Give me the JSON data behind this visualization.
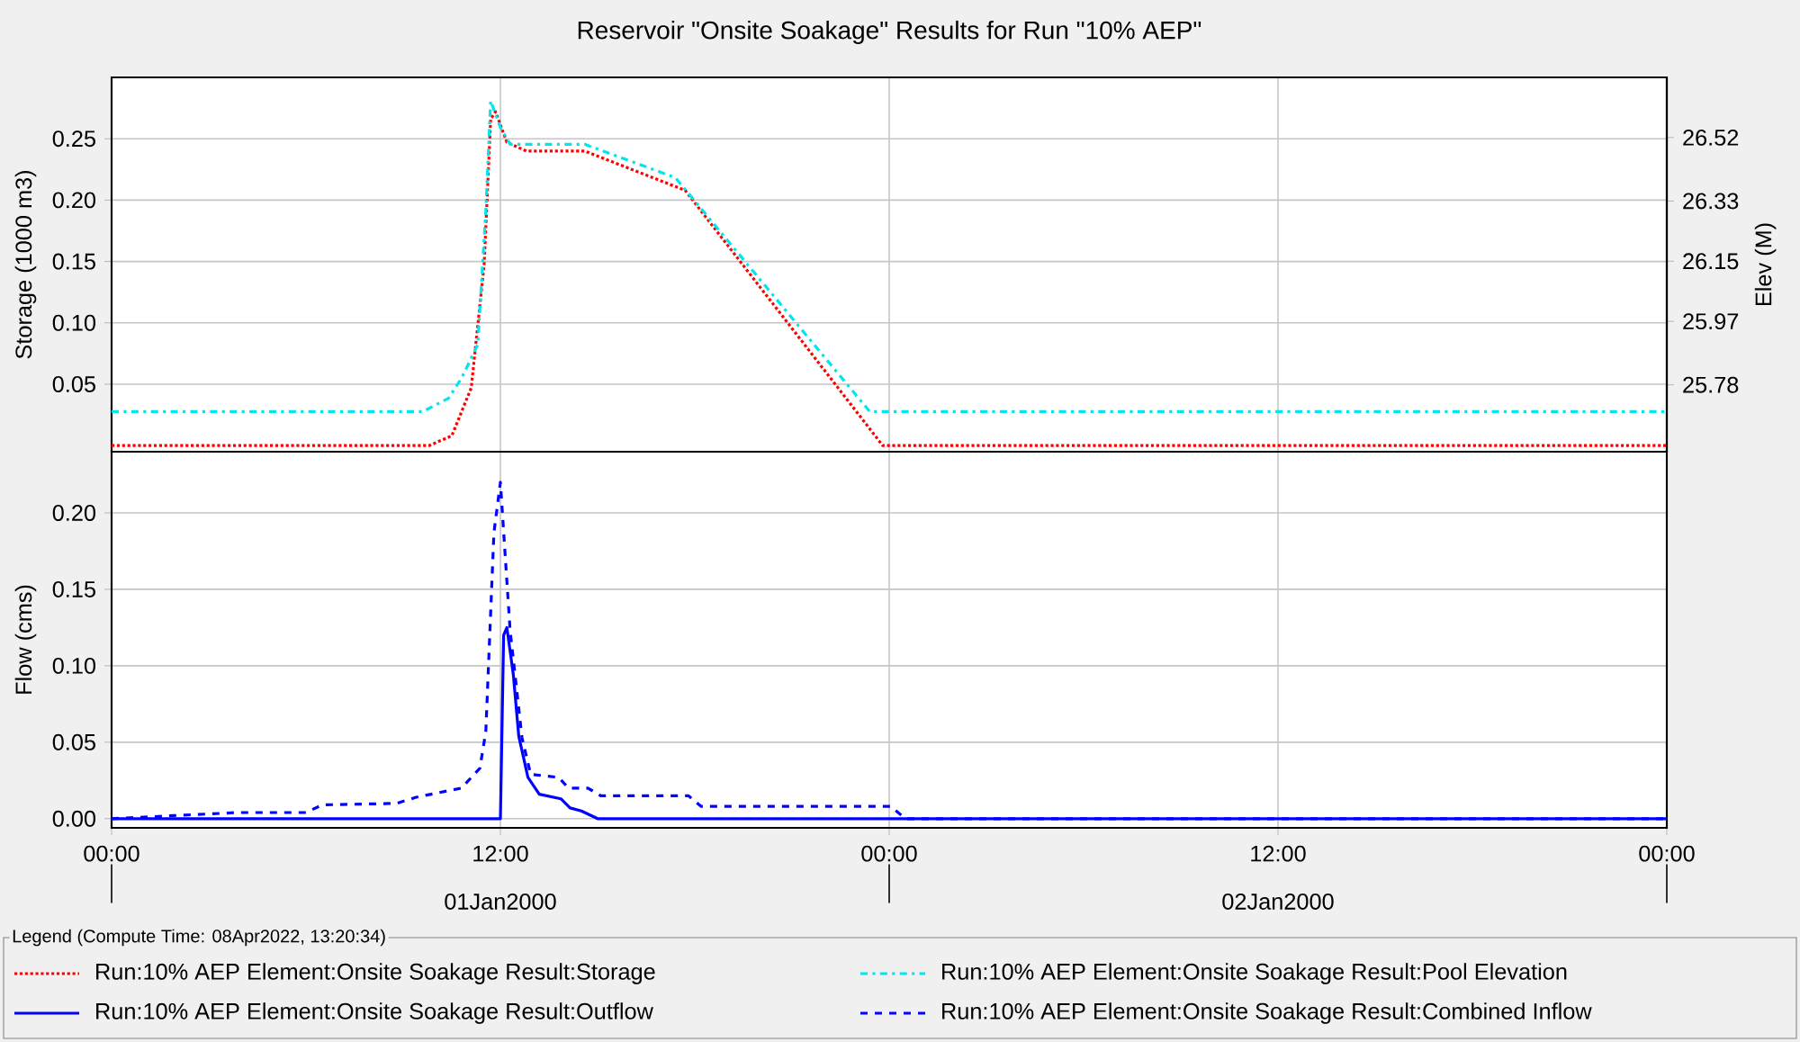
{
  "chart_data": [
    {
      "type": "line",
      "title": "Reservoir \"Onsite Soakage\" Results for Run \"10% AEP\"",
      "ylabel": "Storage (1000 m3)",
      "y2label": "Elev (M)",
      "legend_title": "Legend (Compute Time: 08Apr2022, 13:20:34)",
      "xlim": [
        "2000-01-01T00:00",
        "2000-01-03T00:00"
      ],
      "xticks": [
        {
          "value": "2000-01-01T00:00",
          "label": null
        },
        {
          "value": "2000-01-01T12:00",
          "label": null
        },
        {
          "value": "2000-01-02T00:00",
          "label": null
        },
        {
          "value": "2000-01-02T12:00",
          "label": null
        },
        {
          "value": "2000-01-03T00:00",
          "label": null
        }
      ],
      "ylim": [
        -0.005,
        0.3
      ],
      "yticks": [
        {
          "value": 0.05,
          "label": "0.05"
        },
        {
          "value": 0.1,
          "label": "0.10"
        },
        {
          "value": 0.15,
          "label": "0.15"
        },
        {
          "value": 0.2,
          "label": "0.20"
        },
        {
          "value": 0.25,
          "label": "0.25"
        }
      ],
      "y2lim": [
        25.58,
        26.7
      ],
      "y2ticks": [
        25.78,
        25.97,
        26.15,
        26.33,
        26.52
      ],
      "tick_labels": "y",
      "grid": true,
      "legend": "bottom",
      "series": [
        {
          "name": "Run:10% AEP Element:Onsite Soakage Result:Storage",
          "color": "#ff0000",
          "line_style": "dotted",
          "x": [
            "2000-01-01T00:00",
            "2000-01-01T09:48",
            "2000-01-01T10:30",
            "2000-01-01T11:06",
            "2000-01-01T11:30",
            "2000-01-01T11:42",
            "2000-01-01T11:51",
            "2000-01-01T12:12",
            "2000-01-01T12:48",
            "2000-01-01T14:36",
            "2000-01-01T17:42",
            "2000-01-01T23:48",
            "2000-01-03T00:00"
          ],
          "values": [
            0,
            0,
            0.008,
            0.047,
            0.148,
            0.266,
            0.272,
            0.247,
            0.24,
            0.24,
            0.208,
            0,
            0
          ]
        },
        {
          "name": "Run:10% AEP Element:Onsite Soakage Result:Pool Elevation",
          "color": "#00e5ee",
          "line_style": "dashdot",
          "axis": "y2",
          "x": [
            "2000-01-01T00:00",
            "2000-01-01T09:36",
            "2000-01-01T10:24",
            "2000-01-01T10:48",
            "2000-01-01T11:18",
            "2000-01-01T11:33",
            "2000-01-01T11:42",
            "2000-01-01T12:00",
            "2000-01-01T12:18",
            "2000-01-01T14:36",
            "2000-01-01T17:24",
            "2000-01-01T23:24",
            "2000-01-03T00:00"
          ],
          "values": [
            25.7,
            25.7,
            25.74,
            25.8,
            25.9,
            26.3,
            26.63,
            26.55,
            26.5,
            26.5,
            26.4,
            25.7,
            25.7
          ]
        }
      ]
    },
    {
      "type": "line",
      "ylabel": "Flow (cms)",
      "xlim": [
        "2000-01-01T00:00",
        "2000-01-03T00:00"
      ],
      "xticks": [
        {
          "value": "2000-01-01T00:00",
          "label": "00:00"
        },
        {
          "value": "2000-01-01T12:00",
          "label": "12:00"
        },
        {
          "value": "2000-01-02T00:00",
          "label": "00:00"
        },
        {
          "value": "2000-01-02T12:00",
          "label": "12:00"
        },
        {
          "value": "2000-01-03T00:00",
          "label": "00:00"
        }
      ],
      "ylim": [
        -0.006,
        0.24
      ],
      "yticks": [
        {
          "value": 0,
          "label": "0.00"
        },
        {
          "value": 0.05,
          "label": "0.05"
        },
        {
          "value": 0.1,
          "label": "0.10"
        },
        {
          "value": 0.15,
          "label": "0.15"
        },
        {
          "value": 0.2,
          "label": "0.20"
        }
      ],
      "grid": true,
      "legend": "bottom",
      "annotations": [
        "01Jan2000",
        "02Jan2000"
      ],
      "series": [
        {
          "name": "Run:10% AEP Element:Onsite Soakage Result:Outflow",
          "color": "#0000ff",
          "line_style": "solid",
          "x": [
            "2000-01-01T00:00",
            "2000-01-01T12:00",
            "2000-01-01T12:06",
            "2000-01-01T12:12",
            "2000-01-01T12:24",
            "2000-01-01T12:34",
            "2000-01-01T12:51",
            "2000-01-01T13:12",
            "2000-01-01T13:52",
            "2000-01-01T14:09",
            "2000-01-01T14:30",
            "2000-01-01T15:00",
            "2000-01-03T00:00"
          ],
          "values": [
            0,
            0,
            0.12,
            0.125,
            0.094,
            0.054,
            0.027,
            0.016,
            0.013,
            0.007,
            0.005,
            0,
            0
          ]
        },
        {
          "name": "Run:10% AEP Element:Onsite Soakage Result:Combined Inflow",
          "color": "#0000ff",
          "line_style": "dashed",
          "x": [
            "2000-01-01T00:00",
            "2000-01-01T01:00",
            "2000-01-01T01:54",
            "2000-01-01T03:54",
            "2000-01-01T06:00",
            "2000-01-01T06:30",
            "2000-01-01T08:48",
            "2000-01-01T09:24",
            "2000-01-01T10:06",
            "2000-01-01T10:48",
            "2000-01-01T11:22",
            "2000-01-01T11:33",
            "2000-01-01T11:48",
            "2000-01-01T12:00",
            "2000-01-01T12:18",
            "2000-01-01T12:40",
            "2000-01-01T12:56",
            "2000-01-01T13:48",
            "2000-01-01T14:06",
            "2000-01-01T14:42",
            "2000-01-01T15:06",
            "2000-01-01T17:48",
            "2000-01-01T18:12",
            "2000-01-02T00:03",
            "2000-01-02T00:30",
            "2000-01-03T00:00"
          ],
          "values": [
            0,
            0.001,
            0.002,
            0.004,
            0.004,
            0.009,
            0.01,
            0.014,
            0.017,
            0.02,
            0.033,
            0.057,
            0.187,
            0.22,
            0.123,
            0.053,
            0.029,
            0.027,
            0.02,
            0.02,
            0.015,
            0.015,
            0.008,
            0.008,
            0,
            0
          ]
        }
      ]
    }
  ]
}
